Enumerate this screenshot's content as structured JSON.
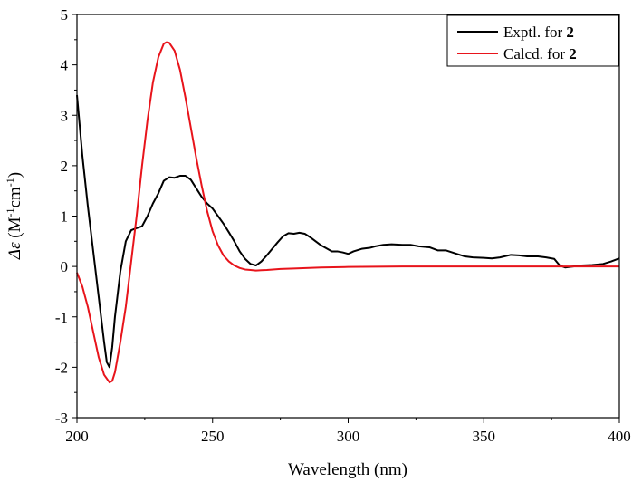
{
  "chart_data": {
    "type": "line",
    "xlabel": "Wavelength (nm)",
    "ylabel_parts": {
      "symbol": "Δε",
      "open": " (M",
      "sup1": "-1",
      "mid": "cm",
      "sup2": "-1",
      "close": ")"
    },
    "xlim": [
      200,
      400
    ],
    "ylim": [
      -3,
      5
    ],
    "x_ticks": [
      200,
      250,
      300,
      350,
      400
    ],
    "y_ticks": [
      -3,
      -2,
      -1,
      0,
      1,
      2,
      3,
      4,
      5
    ],
    "grid": false,
    "legend_position": "top-right",
    "series": [
      {
        "name_prefix": "Exptl. for ",
        "name_bold": "2",
        "color": "#000000",
        "points": [
          [
            200,
            3.4
          ],
          [
            202,
            2.2
          ],
          [
            204,
            1.2
          ],
          [
            206,
            0.3
          ],
          [
            208,
            -0.6
          ],
          [
            210,
            -1.5
          ],
          [
            211,
            -1.9
          ],
          [
            212,
            -2.0
          ],
          [
            213,
            -1.6
          ],
          [
            214,
            -1.0
          ],
          [
            216,
            -0.1
          ],
          [
            218,
            0.5
          ],
          [
            220,
            0.72
          ],
          [
            222,
            0.76
          ],
          [
            224,
            0.8
          ],
          [
            226,
            1.0
          ],
          [
            228,
            1.25
          ],
          [
            230,
            1.45
          ],
          [
            232,
            1.7
          ],
          [
            234,
            1.77
          ],
          [
            236,
            1.76
          ],
          [
            238,
            1.8
          ],
          [
            240,
            1.8
          ],
          [
            242,
            1.72
          ],
          [
            244,
            1.55
          ],
          [
            246,
            1.38
          ],
          [
            248,
            1.25
          ],
          [
            250,
            1.15
          ],
          [
            252,
            1.0
          ],
          [
            254,
            0.85
          ],
          [
            256,
            0.68
          ],
          [
            258,
            0.5
          ],
          [
            260,
            0.3
          ],
          [
            262,
            0.15
          ],
          [
            264,
            0.05
          ],
          [
            266,
            0.02
          ],
          [
            268,
            0.1
          ],
          [
            270,
            0.22
          ],
          [
            272,
            0.35
          ],
          [
            274,
            0.48
          ],
          [
            276,
            0.6
          ],
          [
            278,
            0.66
          ],
          [
            280,
            0.65
          ],
          [
            282,
            0.67
          ],
          [
            284,
            0.65
          ],
          [
            286,
            0.58
          ],
          [
            288,
            0.5
          ],
          [
            290,
            0.42
          ],
          [
            292,
            0.36
          ],
          [
            294,
            0.3
          ],
          [
            296,
            0.3
          ],
          [
            298,
            0.28
          ],
          [
            300,
            0.25
          ],
          [
            302,
            0.3
          ],
          [
            305,
            0.35
          ],
          [
            308,
            0.37
          ],
          [
            310,
            0.4
          ],
          [
            313,
            0.43
          ],
          [
            316,
            0.44
          ],
          [
            320,
            0.43
          ],
          [
            323,
            0.43
          ],
          [
            326,
            0.4
          ],
          [
            330,
            0.38
          ],
          [
            333,
            0.32
          ],
          [
            336,
            0.32
          ],
          [
            340,
            0.25
          ],
          [
            343,
            0.2
          ],
          [
            346,
            0.18
          ],
          [
            350,
            0.17
          ],
          [
            353,
            0.16
          ],
          [
            356,
            0.18
          ],
          [
            360,
            0.23
          ],
          [
            363,
            0.22
          ],
          [
            366,
            0.2
          ],
          [
            370,
            0.2
          ],
          [
            373,
            0.18
          ],
          [
            376,
            0.15
          ],
          [
            378,
            0.02
          ],
          [
            380,
            -0.02
          ],
          [
            383,
            0.0
          ],
          [
            386,
            0.02
          ],
          [
            390,
            0.03
          ],
          [
            394,
            0.05
          ],
          [
            397,
            0.1
          ],
          [
            400,
            0.16
          ]
        ]
      },
      {
        "name_prefix": "Calcd. for ",
        "name_bold": "2",
        "color": "#e8141b",
        "points": [
          [
            200,
            -0.12
          ],
          [
            202,
            -0.4
          ],
          [
            204,
            -0.8
          ],
          [
            206,
            -1.3
          ],
          [
            208,
            -1.8
          ],
          [
            210,
            -2.15
          ],
          [
            212,
            -2.3
          ],
          [
            213,
            -2.27
          ],
          [
            214,
            -2.1
          ],
          [
            216,
            -1.5
          ],
          [
            218,
            -0.8
          ],
          [
            220,
            0.1
          ],
          [
            222,
            1.0
          ],
          [
            224,
            2.0
          ],
          [
            226,
            2.9
          ],
          [
            228,
            3.65
          ],
          [
            230,
            4.15
          ],
          [
            232,
            4.42
          ],
          [
            233,
            4.45
          ],
          [
            234,
            4.44
          ],
          [
            236,
            4.28
          ],
          [
            238,
            3.9
          ],
          [
            240,
            3.35
          ],
          [
            242,
            2.75
          ],
          [
            244,
            2.15
          ],
          [
            246,
            1.6
          ],
          [
            248,
            1.1
          ],
          [
            250,
            0.7
          ],
          [
            252,
            0.42
          ],
          [
            254,
            0.22
          ],
          [
            256,
            0.1
          ],
          [
            258,
            0.02
          ],
          [
            260,
            -0.03
          ],
          [
            262,
            -0.06
          ],
          [
            264,
            -0.07
          ],
          [
            266,
            -0.08
          ],
          [
            268,
            -0.075
          ],
          [
            270,
            -0.07
          ],
          [
            275,
            -0.05
          ],
          [
            280,
            -0.04
          ],
          [
            290,
            -0.02
          ],
          [
            300,
            -0.01
          ],
          [
            320,
            0.0
          ],
          [
            400,
            0.0
          ]
        ]
      }
    ]
  }
}
